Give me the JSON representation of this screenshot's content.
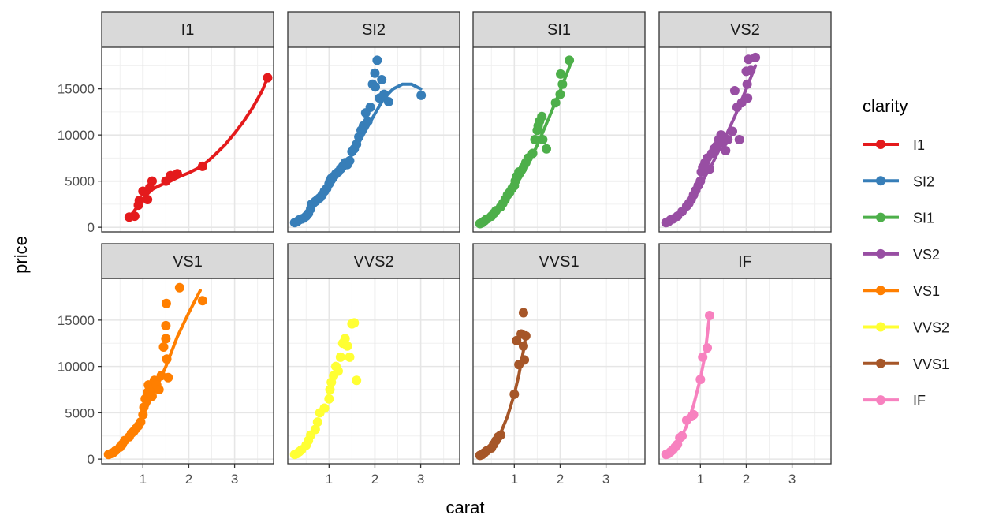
{
  "chart_data": {
    "type": "scatter",
    "xlabel": "carat",
    "ylabel": "price",
    "x_ticks": [
      1,
      2,
      3
    ],
    "y_ticks": [
      0,
      5000,
      10000,
      15000
    ],
    "xlim": [
      0.1,
      3.85
    ],
    "ylim": [
      -500,
      19500
    ],
    "grid": true,
    "smooth_lines": true,
    "legend": {
      "title": "clarity",
      "position": "right"
    },
    "series": [
      {
        "name": "I1",
        "color": "#E41A1C",
        "points": [
          [
            0.7,
            1100
          ],
          [
            0.82,
            1200
          ],
          [
            0.9,
            2400
          ],
          [
            0.92,
            2900
          ],
          [
            1.0,
            3900
          ],
          [
            1.1,
            3000
          ],
          [
            1.15,
            4300
          ],
          [
            1.2,
            5000
          ],
          [
            1.5,
            5000
          ],
          [
            1.6,
            5600
          ],
          [
            1.75,
            5800
          ],
          [
            2.3,
            6600
          ],
          [
            3.72,
            16200
          ]
        ],
        "curve": [
          [
            0.7,
            1100
          ],
          [
            0.8,
            1700
          ],
          [
            0.9,
            2400
          ],
          [
            1.0,
            3000
          ],
          [
            1.1,
            3600
          ],
          [
            1.2,
            4100
          ],
          [
            1.4,
            4600
          ],
          [
            1.6,
            5000
          ],
          [
            1.8,
            5500
          ],
          [
            2.0,
            5900
          ],
          [
            2.2,
            6400
          ],
          [
            2.4,
            7100
          ],
          [
            2.6,
            8000
          ],
          [
            2.8,
            9000
          ],
          [
            3.0,
            10200
          ],
          [
            3.2,
            11500
          ],
          [
            3.4,
            13000
          ],
          [
            3.6,
            14800
          ],
          [
            3.72,
            16200
          ]
        ]
      },
      {
        "name": "SI2",
        "color": "#377EB8",
        "points": [
          [
            0.25,
            500
          ],
          [
            0.3,
            600
          ],
          [
            0.35,
            800
          ],
          [
            0.4,
            900
          ],
          [
            0.45,
            1000
          ],
          [
            0.5,
            1200
          ],
          [
            0.55,
            1500
          ],
          [
            0.6,
            2000
          ],
          [
            0.62,
            2500
          ],
          [
            0.7,
            2800
          ],
          [
            0.75,
            3000
          ],
          [
            0.8,
            3200
          ],
          [
            0.85,
            3500
          ],
          [
            0.9,
            3900
          ],
          [
            0.95,
            4200
          ],
          [
            1.0,
            4700
          ],
          [
            1.02,
            5000
          ],
          [
            1.05,
            5300
          ],
          [
            1.1,
            5500
          ],
          [
            1.15,
            5800
          ],
          [
            1.2,
            6000
          ],
          [
            1.25,
            6300
          ],
          [
            1.3,
            6600
          ],
          [
            1.35,
            7000
          ],
          [
            1.4,
            6800
          ],
          [
            1.45,
            7200
          ],
          [
            1.5,
            8200
          ],
          [
            1.55,
            8500
          ],
          [
            1.6,
            9000
          ],
          [
            1.65,
            9800
          ],
          [
            1.7,
            10500
          ],
          [
            1.75,
            11000
          ],
          [
            1.8,
            12400
          ],
          [
            1.85,
            11500
          ],
          [
            1.9,
            13000
          ],
          [
            1.95,
            15500
          ],
          [
            2.0,
            16700
          ],
          [
            2.01,
            15200
          ],
          [
            2.05,
            18100
          ],
          [
            2.1,
            14000
          ],
          [
            2.15,
            16000
          ],
          [
            2.2,
            14400
          ],
          [
            2.3,
            13600
          ],
          [
            3.01,
            14300
          ]
        ],
        "curve": [
          [
            0.25,
            400
          ],
          [
            0.4,
            900
          ],
          [
            0.6,
            1800
          ],
          [
            0.8,
            2900
          ],
          [
            1.0,
            4200
          ],
          [
            1.2,
            5600
          ],
          [
            1.4,
            7000
          ],
          [
            1.6,
            8700
          ],
          [
            1.8,
            10500
          ],
          [
            2.0,
            12300
          ],
          [
            2.2,
            14000
          ],
          [
            2.4,
            15000
          ],
          [
            2.6,
            15500
          ],
          [
            2.8,
            15500
          ],
          [
            3.0,
            15000
          ]
        ]
      },
      {
        "name": "SI1",
        "color": "#4DAF4A",
        "points": [
          [
            0.25,
            400
          ],
          [
            0.3,
            500
          ],
          [
            0.35,
            700
          ],
          [
            0.4,
            900
          ],
          [
            0.5,
            1200
          ],
          [
            0.55,
            1500
          ],
          [
            0.6,
            1800
          ],
          [
            0.7,
            2200
          ],
          [
            0.75,
            2600
          ],
          [
            0.8,
            3000
          ],
          [
            0.85,
            3500
          ],
          [
            0.9,
            3800
          ],
          [
            0.95,
            4200
          ],
          [
            1.0,
            4500
          ],
          [
            1.02,
            5000
          ],
          [
            1.05,
            5500
          ],
          [
            1.1,
            6000
          ],
          [
            1.2,
            6500
          ],
          [
            1.25,
            7000
          ],
          [
            1.3,
            7500
          ],
          [
            1.4,
            8000
          ],
          [
            1.45,
            9500
          ],
          [
            1.5,
            10500
          ],
          [
            1.52,
            11000
          ],
          [
            1.55,
            11500
          ],
          [
            1.6,
            12000
          ],
          [
            1.62,
            9500
          ],
          [
            1.7,
            8500
          ],
          [
            1.9,
            13500
          ],
          [
            2.0,
            14400
          ],
          [
            2.01,
            16600
          ],
          [
            2.05,
            15500
          ],
          [
            2.2,
            18100
          ]
        ],
        "curve": [
          [
            0.25,
            200
          ],
          [
            0.5,
            1200
          ],
          [
            0.75,
            2600
          ],
          [
            1.0,
            4300
          ],
          [
            1.25,
            6300
          ],
          [
            1.5,
            8900
          ],
          [
            1.75,
            11800
          ],
          [
            2.0,
            14800
          ],
          [
            2.25,
            18000
          ]
        ]
      },
      {
        "name": "VS2",
        "color": "#984EA3",
        "points": [
          [
            0.25,
            500
          ],
          [
            0.3,
            600
          ],
          [
            0.35,
            800
          ],
          [
            0.4,
            900
          ],
          [
            0.5,
            1200
          ],
          [
            0.6,
            1700
          ],
          [
            0.7,
            2300
          ],
          [
            0.75,
            2600
          ],
          [
            0.8,
            3000
          ],
          [
            0.85,
            3500
          ],
          [
            0.9,
            4000
          ],
          [
            0.95,
            4500
          ],
          [
            1.0,
            5000
          ],
          [
            1.02,
            6000
          ],
          [
            1.05,
            6500
          ],
          [
            1.1,
            7000
          ],
          [
            1.15,
            7500
          ],
          [
            1.2,
            6300
          ],
          [
            1.25,
            8000
          ],
          [
            1.3,
            8500
          ],
          [
            1.35,
            8800
          ],
          [
            1.4,
            9500
          ],
          [
            1.45,
            10000
          ],
          [
            1.5,
            9200
          ],
          [
            1.55,
            8300
          ],
          [
            1.6,
            9500
          ],
          [
            1.7,
            10400
          ],
          [
            1.75,
            14800
          ],
          [
            1.8,
            13000
          ],
          [
            1.85,
            9500
          ],
          [
            1.9,
            13500
          ],
          [
            2.0,
            16900
          ],
          [
            2.02,
            15500
          ],
          [
            2.05,
            18200
          ],
          [
            2.1,
            17000
          ],
          [
            2.03,
            14000
          ],
          [
            2.2,
            18400
          ]
        ],
        "curve": [
          [
            0.25,
            300
          ],
          [
            0.5,
            1300
          ],
          [
            0.75,
            2700
          ],
          [
            1.0,
            4600
          ],
          [
            1.25,
            6800
          ],
          [
            1.5,
            9300
          ],
          [
            1.75,
            12000
          ],
          [
            2.0,
            15000
          ],
          [
            2.2,
            17500
          ]
        ]
      },
      {
        "name": "VS1",
        "color": "#FF7F00",
        "points": [
          [
            0.25,
            500
          ],
          [
            0.3,
            600
          ],
          [
            0.35,
            700
          ],
          [
            0.4,
            900
          ],
          [
            0.5,
            1300
          ],
          [
            0.55,
            1600
          ],
          [
            0.6,
            2000
          ],
          [
            0.7,
            2400
          ],
          [
            0.75,
            2800
          ],
          [
            0.8,
            3000
          ],
          [
            0.85,
            3300
          ],
          [
            0.9,
            3600
          ],
          [
            0.95,
            4000
          ],
          [
            1.0,
            4800
          ],
          [
            1.02,
            5600
          ],
          [
            1.05,
            6500
          ],
          [
            1.1,
            7200
          ],
          [
            1.12,
            8000
          ],
          [
            1.15,
            7500
          ],
          [
            1.2,
            6800
          ],
          [
            1.25,
            8500
          ],
          [
            1.3,
            8000
          ],
          [
            1.35,
            7500
          ],
          [
            1.4,
            9000
          ],
          [
            1.45,
            12100
          ],
          [
            1.5,
            13000
          ],
          [
            1.52,
            10800
          ],
          [
            1.55,
            8800
          ],
          [
            1.5,
            14400
          ],
          [
            1.51,
            16800
          ],
          [
            1.8,
            18500
          ],
          [
            2.3,
            17100
          ]
        ],
        "curve": [
          [
            0.25,
            300
          ],
          [
            0.5,
            1400
          ],
          [
            0.75,
            2900
          ],
          [
            1.0,
            4800
          ],
          [
            1.25,
            7200
          ],
          [
            1.5,
            10000
          ],
          [
            1.75,
            13200
          ],
          [
            2.0,
            15800
          ],
          [
            2.25,
            18200
          ]
        ]
      },
      {
        "name": "VVS2",
        "color": "#FFFF33",
        "points": [
          [
            0.25,
            500
          ],
          [
            0.3,
            600
          ],
          [
            0.35,
            800
          ],
          [
            0.4,
            1000
          ],
          [
            0.5,
            1500
          ],
          [
            0.55,
            2000
          ],
          [
            0.6,
            2600
          ],
          [
            0.7,
            3200
          ],
          [
            0.75,
            4000
          ],
          [
            0.8,
            5000
          ],
          [
            0.9,
            5500
          ],
          [
            1.0,
            6500
          ],
          [
            1.02,
            7500
          ],
          [
            1.05,
            8300
          ],
          [
            1.1,
            9000
          ],
          [
            1.15,
            10000
          ],
          [
            1.2,
            9500
          ],
          [
            1.25,
            11000
          ],
          [
            1.3,
            12500
          ],
          [
            1.35,
            13000
          ],
          [
            1.4,
            12200
          ],
          [
            1.45,
            11000
          ],
          [
            1.5,
            14600
          ],
          [
            1.55,
            14700
          ],
          [
            1.6,
            8500
          ]
        ]
      },
      {
        "name": "VVS1",
        "color": "#A65628",
        "points": [
          [
            0.25,
            400
          ],
          [
            0.3,
            500
          ],
          [
            0.35,
            700
          ],
          [
            0.4,
            900
          ],
          [
            0.5,
            1200
          ],
          [
            0.55,
            1600
          ],
          [
            0.6,
            2000
          ],
          [
            0.65,
            2400
          ],
          [
            0.7,
            2600
          ],
          [
            1.0,
            7000
          ],
          [
            1.05,
            12800
          ],
          [
            1.1,
            10200
          ],
          [
            1.15,
            13500
          ],
          [
            1.2,
            12200
          ],
          [
            1.22,
            10700
          ],
          [
            1.25,
            13300
          ],
          [
            1.2,
            15800
          ]
        ],
        "curve": [
          [
            0.25,
            100
          ],
          [
            0.4,
            700
          ],
          [
            0.55,
            1600
          ],
          [
            0.7,
            2800
          ],
          [
            0.85,
            4600
          ],
          [
            1.0,
            7000
          ],
          [
            1.1,
            9100
          ],
          [
            1.2,
            11700
          ],
          [
            1.25,
            13400
          ]
        ]
      },
      {
        "name": "IF",
        "color": "#F781BF",
        "points": [
          [
            0.25,
            500
          ],
          [
            0.3,
            600
          ],
          [
            0.35,
            800
          ],
          [
            0.4,
            1000
          ],
          [
            0.45,
            1300
          ],
          [
            0.5,
            1600
          ],
          [
            0.55,
            2300
          ],
          [
            0.6,
            2500
          ],
          [
            0.7,
            4200
          ],
          [
            0.8,
            4600
          ],
          [
            0.85,
            4800
          ],
          [
            1.0,
            8600
          ],
          [
            1.05,
            11000
          ],
          [
            1.2,
            15500
          ],
          [
            1.15,
            12000
          ]
        ],
        "curve": [
          [
            0.25,
            300
          ],
          [
            0.4,
            900
          ],
          [
            0.55,
            2000
          ],
          [
            0.7,
            3600
          ],
          [
            0.85,
            5800
          ],
          [
            1.0,
            8700
          ],
          [
            1.1,
            11200
          ],
          [
            1.2,
            15500
          ]
        ]
      }
    ]
  }
}
